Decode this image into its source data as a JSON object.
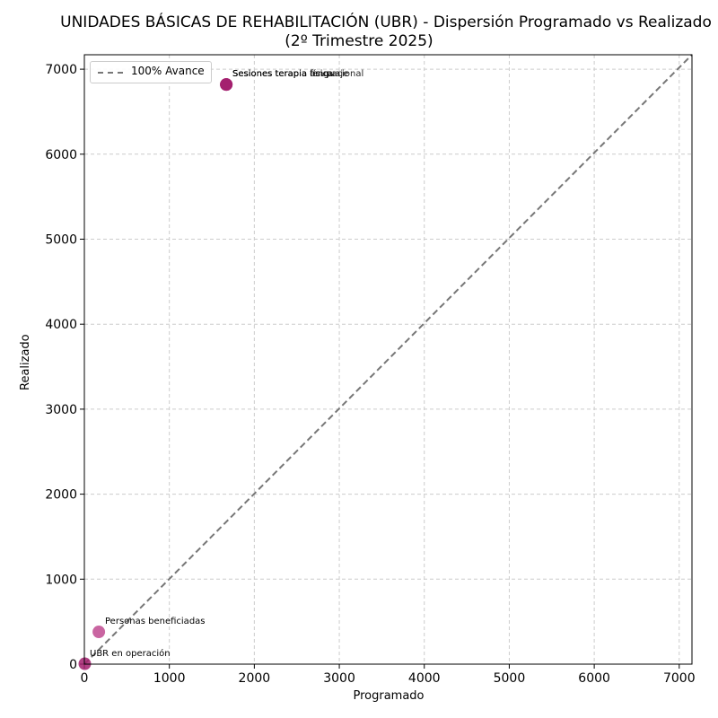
{
  "chart_data": {
    "type": "scatter",
    "title": "UNIDADES BÁSICAS DE REHABILITACIÓN (UBR) - Dispersión Programado vs Realizado",
    "subtitle": "(2º Trimestre 2025)",
    "xlabel": "Programado",
    "ylabel": "Realizado",
    "xlim": [
      0,
      7150
    ],
    "ylim": [
      0,
      7170
    ],
    "xticks": [
      0,
      1000,
      2000,
      3000,
      4000,
      5000,
      6000,
      7000
    ],
    "yticks": [
      0,
      1000,
      2000,
      3000,
      4000,
      5000,
      6000,
      7000
    ],
    "grid": true,
    "legend": {
      "position": "upper left",
      "entries": [
        "100% Avance"
      ]
    },
    "reference_line": {
      "label": "100% Avance",
      "style": "dashed",
      "color": "#777777",
      "from": [
        0,
        0
      ],
      "to": [
        7150,
        7150
      ]
    },
    "points": [
      {
        "label": "Sesiones terapia física",
        "x": 1670,
        "y": 6820,
        "color": "#a3206e"
      },
      {
        "label": "Sesiones terapia lenguaje",
        "x": 1670,
        "y": 6820,
        "color": "#a3206e"
      },
      {
        "label": "Sesiones terapia ocupacional",
        "x": 1670,
        "y": 6820,
        "color": "#a3206e"
      },
      {
        "label": "Personas beneficiadas",
        "x": 170,
        "y": 380,
        "color": "#c04a90"
      },
      {
        "label": "UBR en operación",
        "x": 5,
        "y": 5,
        "color": "#a3206e"
      }
    ]
  },
  "labels": {
    "title": "UNIDADES BÁSICAS DE REHABILITACIÓN (UBR) - Dispersión Programado vs Realizado",
    "subtitle": "(2º Trimestre 2025)",
    "xlabel": "Programado",
    "ylabel": "Realizado",
    "legend": "100% Avance",
    "annot_fisica": "Sesiones terapia física",
    "annot_lenguaje": "Sesiones terapia lenguaje",
    "annot_ocupacional": "Sesiones terapia ocupacional",
    "annot_personas": "Personas beneficiadas",
    "annot_ubr": "UBR en operación"
  }
}
